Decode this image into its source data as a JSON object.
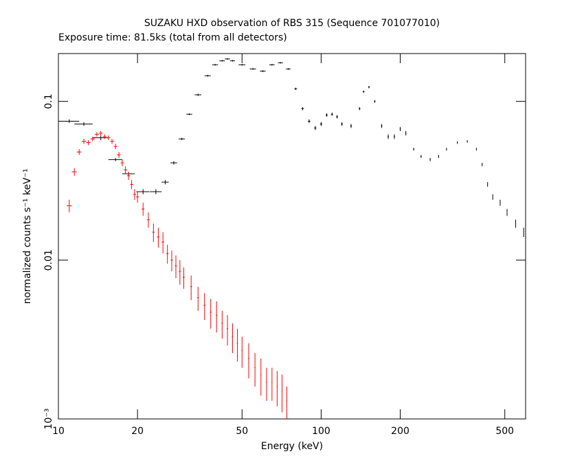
{
  "chart_data": {
    "type": "errorbar-scatter",
    "title": "SUZAKU HXD observation of RBS 315 (Sequence 701077010)",
    "subtitle": "Exposure time: 81.5ks (total from all detectors)",
    "x_label": "Energy (keV)",
    "y_label": "normalized counts s⁻¹ keV⁻¹",
    "log_x": true,
    "log_y": true,
    "xlim": [
      10,
      600
    ],
    "xticks": [
      10,
      20,
      50,
      100,
      200,
      500
    ],
    "ylim": [
      0.001,
      0.2
    ],
    "yticks": [
      {
        "value": 0.001,
        "label": "10⁻³"
      },
      0.01,
      0.1
    ],
    "series": [
      {
        "color": "#000000",
        "x": [
          11,
          12.5,
          14.5,
          16.5,
          18.5,
          21,
          23.5,
          25.5,
          27.5,
          29.5,
          31.5,
          34,
          37,
          39.5,
          42,
          44,
          46,
          50,
          55,
          60,
          65,
          70,
          75,
          80,
          85,
          90,
          95,
          100,
          105,
          110,
          115,
          120,
          130,
          140,
          145,
          152,
          160,
          170,
          180,
          190,
          200,
          210,
          225,
          240,
          260,
          280,
          300,
          330,
          360,
          390,
          410,
          430,
          450,
          480,
          510,
          550,
          590
        ],
        "xerr": [
          1,
          1,
          1,
          1,
          1,
          1.2,
          1.2,
          0.8,
          0.8,
          0.8,
          0.8,
          1,
          1,
          1,
          1,
          1,
          1,
          1.5,
          1.5,
          1.5,
          1.5,
          1.5,
          1.5,
          1,
          1,
          1,
          1,
          1,
          1,
          1,
          1,
          1,
          1,
          1,
          1,
          1,
          1,
          1,
          1,
          1,
          1,
          1,
          1,
          1,
          1,
          1,
          1,
          1,
          1,
          1,
          1,
          1,
          1,
          1,
          1,
          1,
          1
        ],
        "values": [
          0.075,
          0.072,
          0.059,
          0.043,
          0.035,
          0.027,
          0.027,
          0.031,
          0.041,
          0.058,
          0.083,
          0.11,
          0.145,
          0.17,
          0.18,
          0.185,
          0.18,
          0.17,
          0.16,
          0.155,
          0.17,
          0.175,
          0.16,
          0.12,
          0.09,
          0.075,
          0.068,
          0.072,
          0.082,
          0.083,
          0.08,
          0.072,
          0.07,
          0.09,
          0.115,
          0.123,
          0.1,
          0.07,
          0.06,
          0.06,
          0.067,
          0.063,
          0.05,
          0.045,
          0.043,
          0.045,
          0.05,
          0.055,
          0.056,
          0.05,
          0.04,
          0.03,
          0.025,
          0.023,
          0.02,
          0.017,
          0.015
        ],
        "yerr": [
          0.002,
          0.002,
          0.002,
          0.001,
          0.001,
          0.001,
          0.001,
          0.001,
          0.001,
          0.001,
          0.001,
          0.002,
          0.002,
          0.002,
          0.002,
          0.002,
          0.002,
          0.002,
          0.002,
          0.002,
          0.002,
          0.002,
          0.002,
          0.002,
          0.002,
          0.002,
          0.002,
          0.002,
          0.002,
          0.002,
          0.002,
          0.002,
          0.002,
          0.002,
          0.002,
          0.002,
          0.002,
          0.002,
          0.002,
          0.002,
          0.002,
          0.002,
          0.001,
          0.001,
          0.001,
          0.001,
          0.001,
          0.001,
          0.001,
          0.001,
          0.001,
          0.001,
          0.001,
          0.001,
          0.001,
          0.001,
          0.001
        ]
      },
      {
        "color": "#ff0000",
        "x": [
          11,
          11.5,
          12,
          12.5,
          13,
          13.5,
          14,
          14.5,
          15,
          15.5,
          16,
          16.5,
          17,
          17.5,
          18,
          18.5,
          19,
          19.5,
          20,
          21,
          22,
          23,
          24,
          25,
          26,
          27,
          28,
          29,
          30,
          32,
          34,
          36,
          38,
          40,
          42,
          44,
          46,
          48,
          50,
          53,
          56,
          59,
          62,
          65,
          68,
          71,
          74
        ],
        "xerr": [
          0.25,
          0.25,
          0.25,
          0.25,
          0.25,
          0.25,
          0.25,
          0.25,
          0.25,
          0.25,
          0.25,
          0.25,
          0.25,
          0.25,
          0.25,
          0.25,
          0.25,
          0.25,
          0.25,
          0.25,
          0.25,
          0.25,
          0.25,
          0.25,
          0.25,
          0.25,
          0.25,
          0.25,
          0.25,
          0.25,
          0.25,
          0.25,
          0.25,
          0.25,
          0.25,
          0.25,
          0.25,
          0.25,
          0.25,
          0.25,
          0.25,
          0.25,
          0.25,
          0.25,
          0.25,
          0.25,
          0.25
        ],
        "values": [
          0.022,
          0.036,
          0.048,
          0.056,
          0.055,
          0.058,
          0.062,
          0.063,
          0.06,
          0.059,
          0.056,
          0.052,
          0.046,
          0.041,
          0.037,
          0.034,
          0.03,
          0.026,
          0.025,
          0.021,
          0.018,
          0.015,
          0.014,
          0.013,
          0.011,
          0.01,
          0.0092,
          0.0085,
          0.0078,
          0.0068,
          0.0058,
          0.0052,
          0.0047,
          0.0045,
          0.004,
          0.0037,
          0.0033,
          0.003,
          0.0027,
          0.0024,
          0.0021,
          0.0019,
          0.0017,
          0.0017,
          0.0016,
          0.0015,
          0.0013
        ],
        "yerr": [
          0.002,
          0.002,
          0.002,
          0.002,
          0.002,
          0.002,
          0.002,
          0.002,
          0.002,
          0.002,
          0.002,
          0.002,
          0.002,
          0.002,
          0.002,
          0.002,
          0.002,
          0.002,
          0.002,
          0.002,
          0.002,
          0.002,
          0.002,
          0.002,
          0.0015,
          0.0015,
          0.0015,
          0.0015,
          0.0012,
          0.0012,
          0.001,
          0.001,
          0.001,
          0.001,
          0.0008,
          0.0008,
          0.0007,
          0.0007,
          0.0006,
          0.0006,
          0.0005,
          0.0005,
          0.0004,
          0.0004,
          0.0004,
          0.0004,
          0.0003
        ]
      }
    ]
  }
}
